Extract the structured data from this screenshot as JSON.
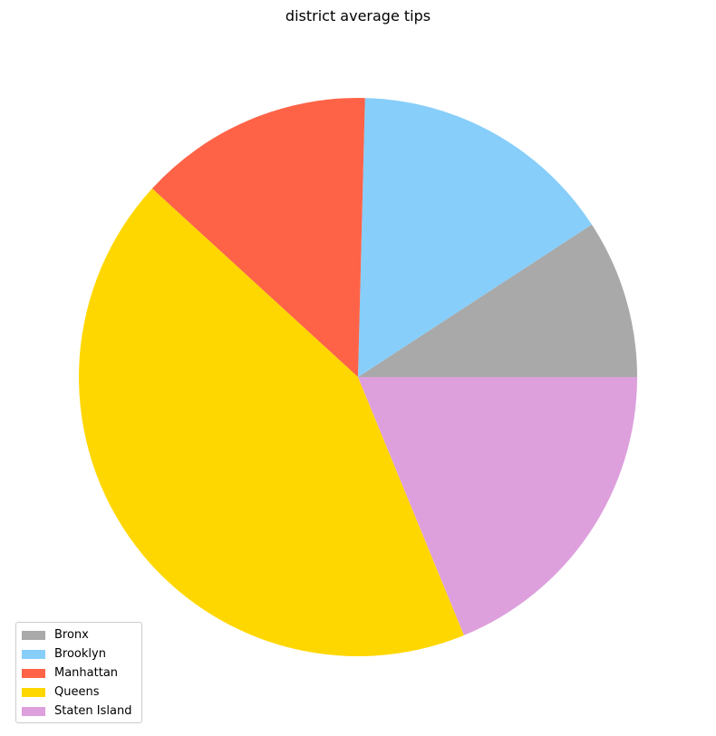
{
  "chart_data": {
    "type": "pie",
    "title": "district average tips",
    "categories": [
      "Bronx",
      "Brooklyn",
      "Manhattan",
      "Queens",
      "Staten Island"
    ],
    "values": [
      9.2,
      15.4,
      13.6,
      43.0,
      18.8
    ],
    "colors": [
      "#a9a9a9",
      "#87cefa",
      "#ff6347",
      "#ffd700",
      "#dda0dd"
    ],
    "start_angle_deg": 0,
    "direction": "counterclockwise",
    "legend": {
      "placement": "lower-left",
      "items": [
        "Bronx",
        "Brooklyn",
        "Manhattan",
        "Queens",
        "Staten Island"
      ]
    }
  }
}
